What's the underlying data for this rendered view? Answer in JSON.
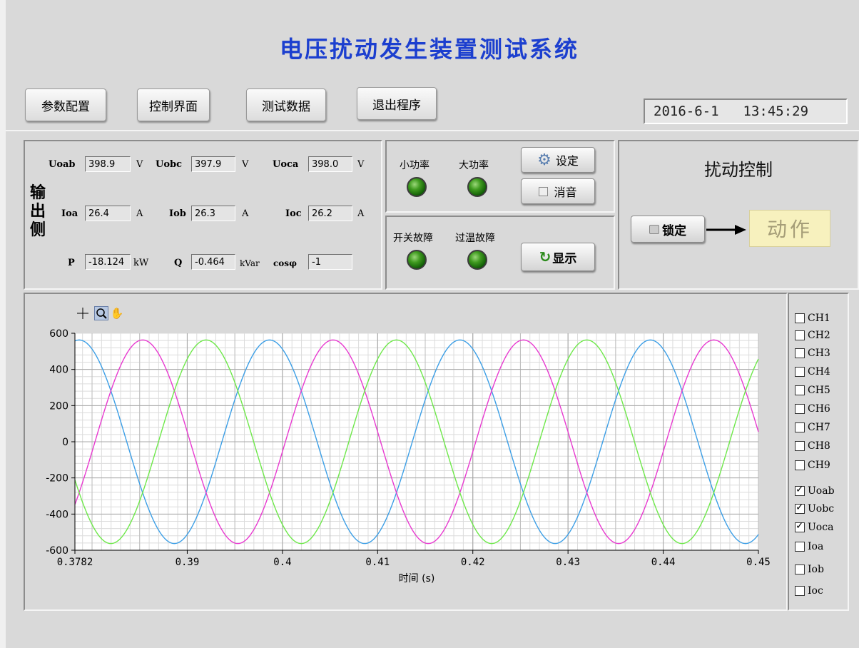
{
  "title": "电压扰动发生装置测试系统",
  "nav": [
    "参数配置",
    "控制界面",
    "测试数据",
    "退出程序"
  ],
  "datetime": {
    "date": "2016-6-1",
    "time": "13:45:29"
  },
  "output": {
    "side_label": [
      "输",
      "出",
      "侧"
    ],
    "row1": [
      {
        "label": "Uoab",
        "value": "398.9",
        "unit": "V"
      },
      {
        "label": "Uobc",
        "value": "397.9",
        "unit": "V"
      },
      {
        "label": "Uoca",
        "value": "398.0",
        "unit": "V"
      }
    ],
    "row2": [
      {
        "label": "Ioa",
        "value": "26.4",
        "unit": "A"
      },
      {
        "label": "Iob",
        "value": "26.3",
        "unit": "A"
      },
      {
        "label": "Ioc",
        "value": "26.2",
        "unit": "A"
      }
    ],
    "row3": [
      {
        "label": "P",
        "value": "-18.124",
        "unit": "kW"
      },
      {
        "label": "Q",
        "value": "-0.464",
        "unit": "kVar"
      },
      {
        "label": "cosφ",
        "value": "-1",
        "unit": ""
      }
    ]
  },
  "power_panel": {
    "small": "小功率",
    "large": "大功率",
    "set": "设定",
    "mute": "消音"
  },
  "fault_panel": {
    "switch": "开关故障",
    "overtemp": "过温故障",
    "show": "显示"
  },
  "control": {
    "title": "扰动控制",
    "lock": "锁定",
    "action": "动作"
  },
  "colors": {
    "title": "#1c3fcf",
    "Uoab": "#3d9fe6",
    "Uobc": "#e83ad0",
    "Uoca": "#6ee84a",
    "led": "#2f8a12"
  },
  "chart_data": {
    "type": "line",
    "xlabel": "时间 (s)",
    "ylabel": "",
    "xlim": [
      0.3782,
      0.45
    ],
    "ylim": [
      -600,
      600
    ],
    "xticks": [
      "0.3782",
      "0.39",
      "0.4",
      "0.41",
      "0.42",
      "0.43",
      "0.44",
      "0.45"
    ],
    "yticks": [
      "600",
      "400",
      "200",
      "0",
      "-200",
      "-400",
      "-600"
    ],
    "grid": true,
    "frequency_hz": 50,
    "amplitude": 563,
    "series": [
      {
        "name": "Uoab",
        "color": "#3d9fe6",
        "phase_deg": 82
      },
      {
        "name": "Uobc",
        "color": "#e83ad0",
        "phase_deg": -38
      },
      {
        "name": "Uoca",
        "color": "#6ee84a",
        "phase_deg": -158
      }
    ]
  },
  "legend": [
    {
      "label": "CH1",
      "checked": false
    },
    {
      "label": "CH2",
      "checked": false
    },
    {
      "label": "CH3",
      "checked": false
    },
    {
      "label": "CH4",
      "checked": false
    },
    {
      "label": "CH5",
      "checked": false
    },
    {
      "label": "CH6",
      "checked": false
    },
    {
      "label": "CH7",
      "checked": false
    },
    {
      "label": "CH8",
      "checked": false
    },
    {
      "label": "CH9",
      "checked": false
    },
    {
      "label": "Uoab",
      "checked": true
    },
    {
      "label": "Uobc",
      "checked": true
    },
    {
      "label": "Uoca",
      "checked": true
    },
    {
      "label": "Ioa",
      "checked": false
    },
    {
      "label": "Iob",
      "checked": false
    },
    {
      "label": "Ioc",
      "checked": false
    }
  ],
  "graph_tools": [
    "crosshair-icon",
    "zoom-icon",
    "pan-hand-icon"
  ]
}
